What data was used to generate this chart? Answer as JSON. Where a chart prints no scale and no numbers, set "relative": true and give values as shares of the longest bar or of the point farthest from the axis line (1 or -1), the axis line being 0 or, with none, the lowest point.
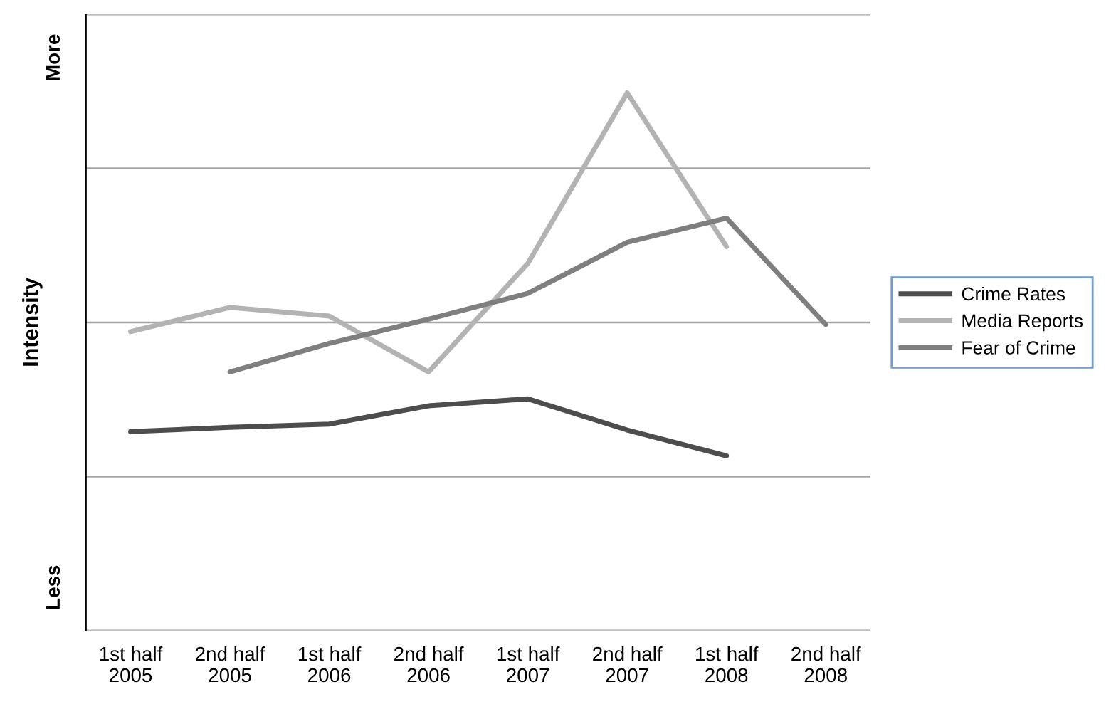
{
  "chart_data": {
    "type": "line",
    "relative": true,
    "ylabel": "Intensity",
    "grid": "y",
    "legend": "right",
    "marker": "none",
    "line_style": "solid",
    "annotations": [
      "More",
      "Less"
    ],
    "categories": [
      "1st half\n2005",
      "2nd half\n2005",
      "1st half\n2006",
      "2nd half\n2006",
      "1st half\n2007",
      "2nd half\n2007",
      "1st half\n2008",
      "2nd half\n2008"
    ],
    "series": [
      {
        "name": "Crime Rates",
        "color": "#4d4d4d",
        "values": [
          0.37,
          0.378,
          0.384,
          0.418,
          0.431,
          0.373,
          0.325,
          null
        ]
      },
      {
        "name": "Media Reports",
        "color": "#b3b3b3",
        "values": [
          0.556,
          0.601,
          0.585,
          0.481,
          0.683,
          1,
          0.714,
          null
        ]
      },
      {
        "name": "Fear of Crime",
        "color": "#7f7f7f",
        "values": [
          null,
          0.481,
          0.534,
          0.579,
          0.627,
          0.722,
          0.767,
          0.569
        ]
      }
    ]
  }
}
